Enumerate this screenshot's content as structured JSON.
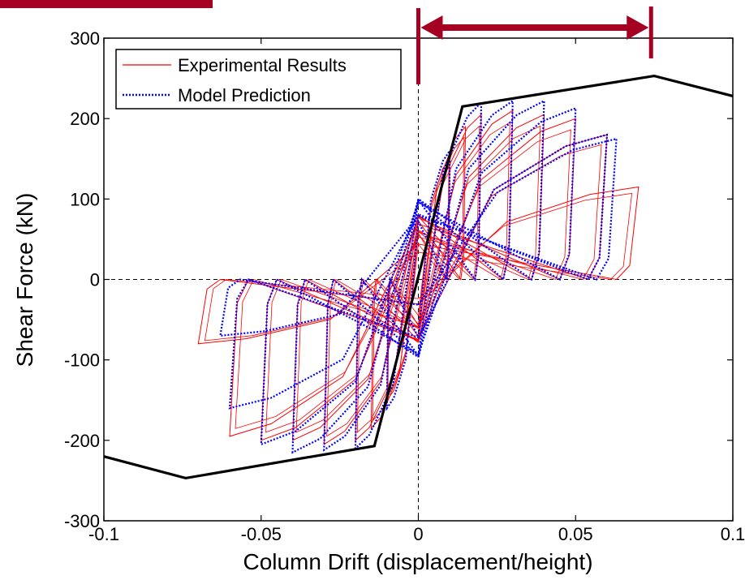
{
  "chart_data": {
    "type": "line",
    "title": "",
    "xlabel": "Column Drift (displacement/height)",
    "ylabel": "Shear Force (kN)",
    "xlim": [
      -0.1,
      0.1
    ],
    "ylim": [
      -300,
      300
    ],
    "x_ticks": [
      -0.1,
      -0.05,
      0,
      0.05,
      0.1
    ],
    "x_tick_labels": [
      "-0.1",
      "-0.05",
      "0",
      "0.05",
      "0.1"
    ],
    "y_ticks": [
      -300,
      -200,
      -100,
      0,
      100,
      200,
      300
    ],
    "y_tick_labels": [
      "-300",
      "-200",
      "-100",
      "0",
      "100",
      "200",
      "300"
    ],
    "grid": false,
    "zero_reference_lines": true,
    "legend_position": "top-left",
    "legend": [
      "Experimental Results",
      "Model Prediction"
    ],
    "colors": {
      "experimental": "#ff0000",
      "model": "#0000ff",
      "backbone": "#000000",
      "annotation": "#a50021"
    },
    "backbone_curve": {
      "x": [
        -0.1,
        -0.074,
        -0.014,
        0.014,
        0.075,
        0.1
      ],
      "y": [
        -220,
        -247,
        -207,
        215,
        253,
        228
      ]
    },
    "experimental_loops": [
      {
        "amp": 0.01,
        "fpos": 150,
        "fneg": -150
      },
      {
        "amp": 0.015,
        "fpos": 190,
        "fneg": -185
      },
      {
        "amp": 0.02,
        "fpos": 205,
        "fneg": -200
      },
      {
        "amp": 0.03,
        "fpos": 210,
        "fneg": -205
      },
      {
        "amp": 0.04,
        "fpos": 205,
        "fneg": -200
      },
      {
        "amp": 0.05,
        "fpos": 200,
        "fneg": -200
      },
      {
        "amp": 0.06,
        "fpos": 180,
        "fneg": -195
      },
      {
        "amp": 0.07,
        "fpos": 115,
        "fneg": -80
      }
    ],
    "model_loops": [
      {
        "amp": 0.01,
        "fpos": 160,
        "fneg": -160
      },
      {
        "amp": 0.02,
        "fpos": 220,
        "fneg": -210
      },
      {
        "amp": 0.03,
        "fpos": 222,
        "fneg": -212
      },
      {
        "amp": 0.04,
        "fpos": 222,
        "fneg": -215
      },
      {
        "amp": 0.05,
        "fpos": 213,
        "fneg": -205
      },
      {
        "amp": 0.06,
        "fpos": 180,
        "fneg": -160
      },
      {
        "amp": 0.063,
        "fpos": 175,
        "fneg": -70
      }
    ],
    "annotation_arrow": {
      "x_from": 0,
      "x_to": 0.074
    }
  }
}
